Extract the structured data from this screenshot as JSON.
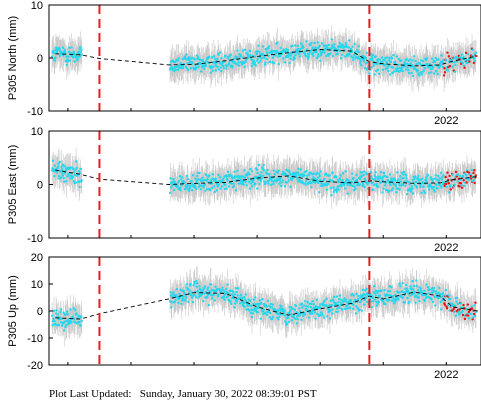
{
  "footer": {
    "label": "Plot Last Updated:",
    "value": "Sunday, January 30, 2022 08:39:01 PST"
  },
  "colors": {
    "points": "#22d8ee",
    "recent_points": "#ee1111",
    "error_bars": "#c8c8c8",
    "trend": "#000000",
    "event_lines": "#e02020"
  },
  "chart_data": [
    {
      "type": "scatter",
      "station": "P305",
      "ylabel": "P305 North (mm)",
      "ylim": [
        -10,
        10
      ],
      "yticks": [
        -10,
        0,
        10
      ],
      "x_range": [
        2015.7,
        2022.55
      ],
      "xtick": {
        "value": 2022,
        "label": "2022"
      },
      "event_lines_x": [
        2016.5,
        2020.78
      ],
      "data_gap_x": [
        2016.25,
        2017.6
      ],
      "trend": {
        "x": [
          2015.8,
          2016.2,
          2016.5,
          2017.6,
          2018.0,
          2018.5,
          2019.0,
          2019.5,
          2020.0,
          2020.5,
          2020.78,
          2021.0,
          2021.5,
          2021.9,
          2022.1,
          2022.5
        ],
        "y": [
          0.8,
          0.6,
          -0.1,
          -1.3,
          -1.2,
          -0.5,
          0.3,
          1.0,
          1.6,
          1.3,
          -0.7,
          -1.1,
          -1.5,
          -1.3,
          -0.6,
          0.4
        ]
      }
    },
    {
      "type": "scatter",
      "station": "P305",
      "ylabel": "P305 East (mm)",
      "ylim": [
        -10,
        10
      ],
      "yticks": [
        -10,
        0,
        10
      ],
      "x_range": [
        2015.7,
        2022.55
      ],
      "xtick": {
        "value": 2022,
        "label": "2022"
      },
      "event_lines_x": [
        2016.5,
        2020.78
      ],
      "data_gap_x": [
        2016.25,
        2017.6
      ],
      "trend": {
        "x": [
          2015.8,
          2016.2,
          2016.5,
          2017.6,
          2018.0,
          2018.5,
          2019.0,
          2019.5,
          2020.0,
          2020.5,
          2020.78,
          2021.0,
          2021.5,
          2021.9,
          2022.1,
          2022.5
        ],
        "y": [
          2.7,
          1.9,
          1.0,
          0.0,
          0.2,
          0.4,
          1.2,
          1.6,
          0.6,
          0.3,
          0.7,
          0.5,
          0.2,
          0.3,
          0.9,
          1.5
        ]
      }
    },
    {
      "type": "scatter",
      "station": "P305",
      "ylabel": "P305 Up (mm)",
      "ylim": [
        -20,
        20
      ],
      "yticks": [
        -20,
        -10,
        0,
        10,
        20
      ],
      "x_range": [
        2015.7,
        2022.55
      ],
      "xtick": {
        "value": 2022,
        "label": "2022"
      },
      "event_lines_x": [
        2016.5,
        2020.78
      ],
      "data_gap_x": [
        2016.25,
        2017.6
      ],
      "trend": {
        "x": [
          2015.8,
          2016.2,
          2016.5,
          2017.6,
          2018.0,
          2018.5,
          2019.0,
          2019.5,
          2020.0,
          2020.5,
          2020.78,
          2021.0,
          2021.5,
          2021.9,
          2022.1,
          2022.5
        ],
        "y": [
          -2.5,
          -3.0,
          -1.0,
          4.5,
          6.8,
          6.5,
          1.5,
          -1.5,
          0.8,
          2.8,
          5.5,
          4.5,
          7.0,
          5.5,
          1.5,
          0.0
        ]
      }
    }
  ]
}
